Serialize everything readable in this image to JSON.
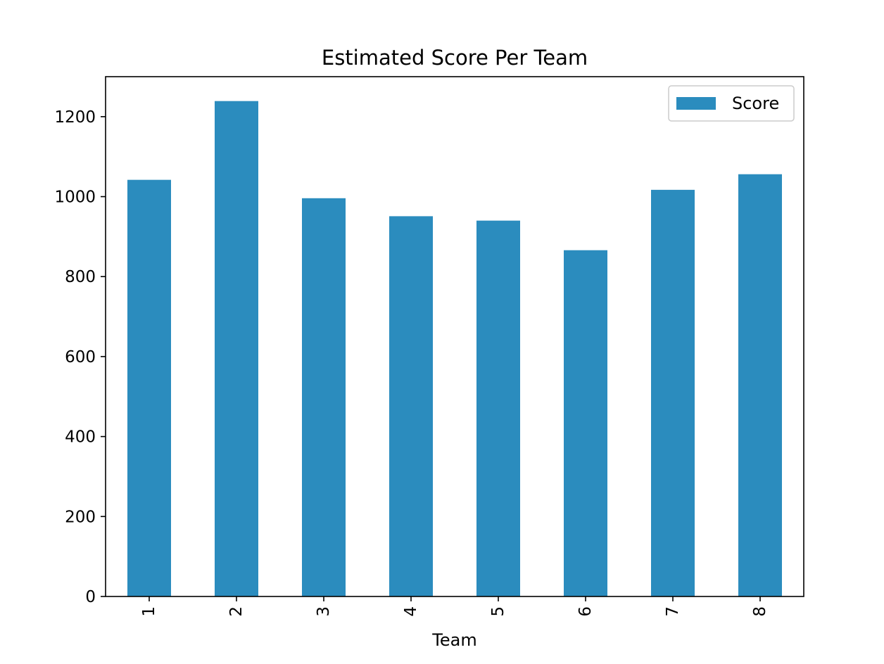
{
  "chart_data": {
    "type": "bar",
    "title": "Estimated Score Per Team",
    "xlabel": "Team",
    "ylabel": "",
    "categories": [
      "1",
      "2",
      "3",
      "4",
      "5",
      "6",
      "7",
      "8"
    ],
    "series": [
      {
        "name": "Score",
        "values": [
          1042,
          1239,
          996,
          951,
          940,
          866,
          1017,
          1056
        ],
        "color": "#2b8cbe"
      }
    ],
    "ylim": [
      0,
      1300
    ],
    "yticks": [
      0,
      200,
      400,
      600,
      800,
      1000,
      1200
    ],
    "x_tick_rotation": "vertical",
    "grid": false,
    "legend_position": "top-right"
  }
}
